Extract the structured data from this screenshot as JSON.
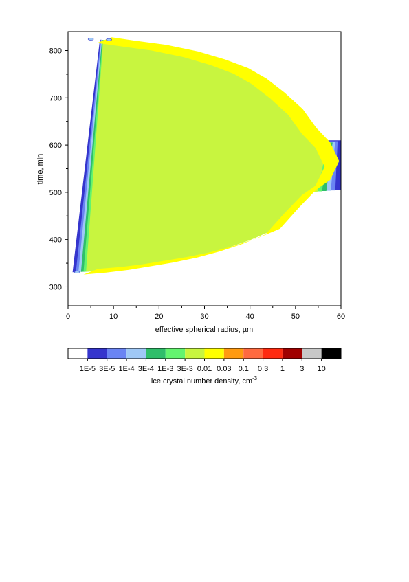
{
  "chart_data": {
    "type": "area",
    "xlabel": "effective spherical radius, µm",
    "ylabel": "time, min",
    "xlim": [
      0,
      60
    ],
    "ylim": [
      260,
      840
    ],
    "x_ticks": [
      0,
      10,
      20,
      30,
      40,
      50,
      60
    ],
    "y_ticks": [
      300,
      400,
      500,
      600,
      700,
      800
    ],
    "colorbar": {
      "label": "ice crystal number density, cm",
      "label_superscript": "-3",
      "levels": [
        "1E-5",
        "3E-5",
        "1E-4",
        "3E-4",
        "1E-3",
        "3E-3",
        "0.01",
        "0.03",
        "0.1",
        "0.3",
        "1",
        "3",
        "10"
      ],
      "colors": [
        "#ffffff",
        "#3535cd",
        "#6a84f3",
        "#9fc8f6",
        "#2fbe6a",
        "#63f46f",
        "#c8f53f",
        "#ffff00",
        "#ff9a10",
        "#ff6a40",
        "#ff2a10",
        "#a00000",
        "#c8c8c8",
        "#000000"
      ]
    },
    "outer_boundary": {
      "lower_branch": [
        [
          1,
          331
        ],
        [
          5,
          334
        ],
        [
          10,
          338
        ],
        [
          15,
          344
        ],
        [
          20,
          352
        ],
        [
          25,
          361
        ],
        [
          30,
          372
        ],
        [
          35,
          386
        ],
        [
          40,
          404
        ],
        [
          45,
          428
        ],
        [
          48,
          445
        ],
        [
          50,
          470
        ],
        [
          52,
          500
        ],
        [
          53,
          505
        ]
      ],
      "plateau": [
        [
          53,
          505
        ],
        [
          60,
          505
        ],
        [
          60,
          610
        ],
        [
          53,
          610
        ]
      ],
      "upper_branch": [
        [
          53,
          615
        ],
        [
          50,
          640
        ],
        [
          47,
          690
        ],
        [
          44,
          720
        ],
        [
          40,
          745
        ],
        [
          35,
          770
        ],
        [
          30,
          787
        ],
        [
          25,
          800
        ],
        [
          20,
          808
        ],
        [
          15,
          815
        ],
        [
          10,
          820
        ],
        [
          7,
          823
        ]
      ]
    },
    "core_centerline": [
      [
        5,
        332
      ],
      [
        10,
        336
      ],
      [
        15,
        342
      ],
      [
        20,
        350
      ],
      [
        25,
        358
      ],
      [
        30,
        368
      ],
      [
        35,
        381
      ],
      [
        40,
        397
      ],
      [
        45,
        417
      ],
      [
        49,
        460
      ],
      [
        53,
        500
      ],
      [
        56,
        520
      ],
      [
        58,
        560
      ],
      [
        56,
        600
      ],
      [
        53,
        630
      ],
      [
        50,
        670
      ],
      [
        46,
        705
      ],
      [
        42,
        735
      ],
      [
        38,
        757
      ],
      [
        33,
        775
      ],
      [
        27,
        792
      ],
      [
        20,
        806
      ],
      [
        13,
        815
      ],
      [
        8,
        822
      ]
    ],
    "detached_blobs": [
      [
        5,
        824
      ],
      [
        9,
        823
      ],
      [
        2,
        331
      ]
    ]
  }
}
